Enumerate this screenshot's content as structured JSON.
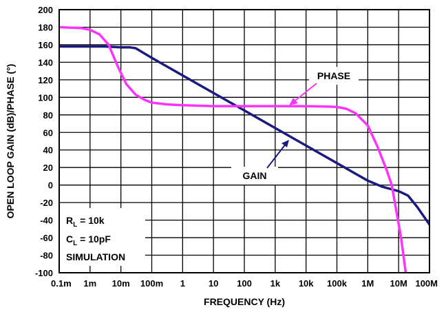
{
  "chart_data": {
    "type": "line",
    "xlabel": "FREQUENCY (Hz)",
    "ylabel": "OPEN LOOP GAIN (dB)/PHASE (°)",
    "xscale": "log",
    "xlim": [
      0.0001,
      100000000
    ],
    "ylim": [
      -100,
      200
    ],
    "grid": true,
    "x_tick_labels": [
      "0.1m",
      "1m",
      "10m",
      "100m",
      "1",
      "10",
      "100",
      "1k",
      "10k",
      "100k",
      "1M",
      "10M",
      "100M"
    ],
    "y_ticks": [
      200,
      180,
      160,
      140,
      120,
      100,
      80,
      60,
      40,
      20,
      0,
      -20,
      -40,
      -60,
      -80,
      -100
    ],
    "series": [
      {
        "name": "GAIN",
        "color": "#1a1a80",
        "points": [
          [
            0.0001,
            158
          ],
          [
            0.001,
            158
          ],
          [
            0.003,
            158
          ],
          [
            0.01,
            157
          ],
          [
            0.02,
            157
          ],
          [
            0.03,
            156
          ],
          [
            0.1,
            145
          ],
          [
            1,
            125
          ],
          [
            10,
            105
          ],
          [
            100,
            85
          ],
          [
            1000,
            65
          ],
          [
            10000,
            45
          ],
          [
            100000,
            25
          ],
          [
            1000000,
            5
          ],
          [
            3000000,
            -2
          ],
          [
            10000000,
            -7
          ],
          [
            20000000,
            -12
          ],
          [
            40000000,
            -25
          ],
          [
            100000000,
            -45
          ]
        ]
      },
      {
        "name": "PHASE",
        "color": "#ff33ff",
        "points": [
          [
            0.0001,
            180
          ],
          [
            0.0005,
            179
          ],
          [
            0.001,
            177
          ],
          [
            0.002,
            172
          ],
          [
            0.004,
            160
          ],
          [
            0.008,
            135
          ],
          [
            0.015,
            115
          ],
          [
            0.03,
            103
          ],
          [
            0.06,
            97
          ],
          [
            0.1,
            94
          ],
          [
            0.3,
            92
          ],
          [
            1,
            91
          ],
          [
            10,
            90
          ],
          [
            100,
            90
          ],
          [
            1000,
            90
          ],
          [
            10000,
            90
          ],
          [
            50000,
            89.5
          ],
          [
            100000,
            89
          ],
          [
            200000,
            87
          ],
          [
            400000,
            82
          ],
          [
            1000000,
            68
          ],
          [
            2000000,
            45
          ],
          [
            4000000,
            18
          ],
          [
            6000000,
            0
          ],
          [
            8000000,
            -25
          ],
          [
            12000000,
            -60
          ],
          [
            17000000,
            -100
          ]
        ]
      }
    ],
    "annotations": {
      "phase_label": "PHASE",
      "gain_label": "GAIN",
      "rl_base": "R",
      "rl_sub": "L",
      "rl_value": " = 10k",
      "cl_base": "C",
      "cl_sub": "L",
      "cl_value": " = 10pF",
      "simulation": "SIMULATION"
    }
  }
}
